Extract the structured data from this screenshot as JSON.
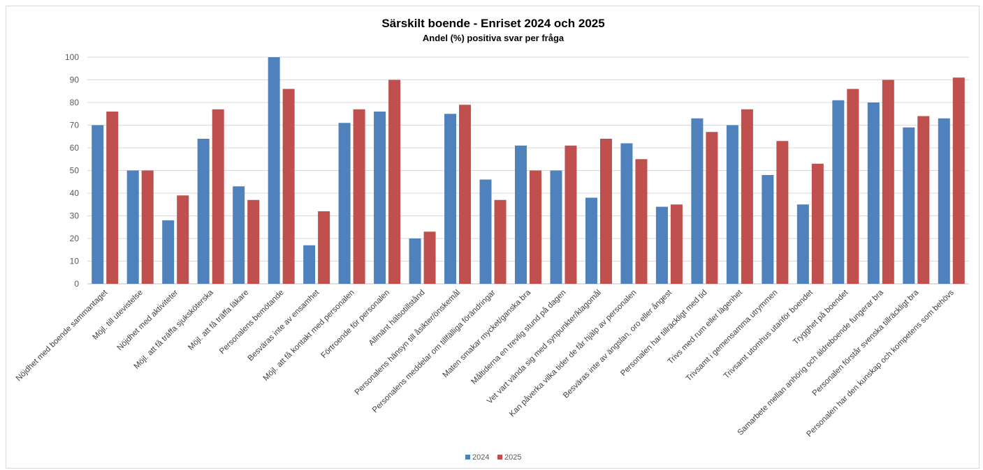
{
  "chart_data": {
    "type": "bar",
    "title": "Särskilt boende - Enriset 2024 och 2025",
    "subtitle": "Andel (%) positiva svar per fråga",
    "xlabel": "",
    "ylabel": "",
    "ylim": [
      0,
      100
    ],
    "yticks": [
      "0",
      "10",
      "20",
      "30",
      "40",
      "50",
      "60",
      "70",
      "80",
      "90",
      "100"
    ],
    "grid": true,
    "legend_position": "bottom",
    "categories": [
      "Nöjdhet med boende sammantaget",
      "Möjl. till utevistelse",
      "Nöjdhet med aktiviteter",
      "Möjl. att få träffa sjuksköterska",
      "Möjl. att få träffa läkare",
      "Personalens bemötande",
      "Besväras inte av ensamhet",
      "Möjl. att få kontakt med personalen",
      "Förtroende för personalen",
      "Allmänt hälsotillstånd",
      "Personalens hänsyn till åsikter/önskemål",
      "Personalens meddelar om tillfälliga förändringar",
      "Maten smakar mycket/ganska bra",
      "Måltiderna en trevlig stund på dagen",
      "Vet vart vända sig med synpunkter/klagomål",
      "Kan påverka vilka tider de får hjälp av personalen",
      "Besväras inte av ängslan, oro eller ångest",
      "Personalen har tillräckligt med tid",
      "Trivs med rum eller lägenhet",
      "Trivsamt i gemensamma utrymmen",
      "Trivsamt utomhus utanför boendet",
      "Trygghet på boendet",
      "Samarbete mellan anhörig och äldreboende fungerar bra",
      "Personalen förstår svenska tillräckligt bra",
      "Personalen har den kunskap och kompetens som behövs"
    ],
    "series": [
      {
        "name": "2024",
        "color": "#4f81bd",
        "values": [
          70,
          50,
          28,
          64,
          43,
          100,
          17,
          71,
          76,
          20,
          75,
          46,
          61,
          50,
          38,
          62,
          34,
          73,
          70,
          48,
          35,
          81,
          80,
          69,
          73
        ]
      },
      {
        "name": "2025",
        "color": "#c0504d",
        "values": [
          76,
          50,
          39,
          77,
          37,
          86,
          32,
          77,
          90,
          23,
          79,
          37,
          50,
          61,
          64,
          55,
          35,
          67,
          77,
          63,
          53,
          86,
          90,
          74,
          91
        ]
      }
    ]
  }
}
